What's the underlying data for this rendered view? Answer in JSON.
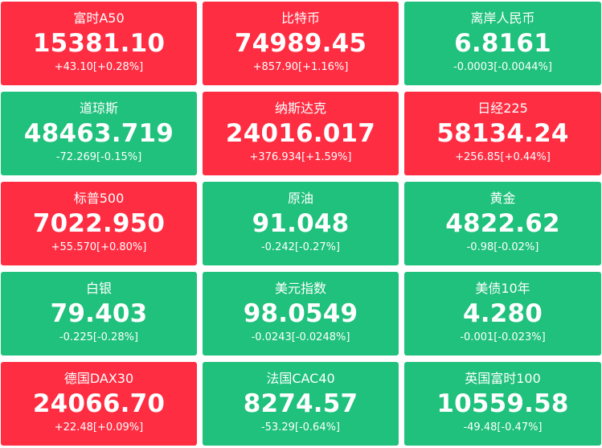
{
  "colors": {
    "up": "#fe2d42",
    "down": "#1fc17c",
    "text": "#ffffff"
  },
  "tiles": [
    {
      "name": "富时A50",
      "price": "15381.10",
      "change": "+43.10[+0.28%]",
      "trend": "up"
    },
    {
      "name": "比特币",
      "price": "74989.45",
      "change": "+857.90[+1.16%]",
      "trend": "up"
    },
    {
      "name": "离岸人民币",
      "price": "6.8161",
      "change": "-0.0003[-0.0044%]",
      "trend": "down"
    },
    {
      "name": "道琼斯",
      "price": "48463.719",
      "change": "-72.269[-0.15%]",
      "trend": "down"
    },
    {
      "name": "纳斯达克",
      "price": "24016.017",
      "change": "+376.934[+1.59%]",
      "trend": "up"
    },
    {
      "name": "日经225",
      "price": "58134.24",
      "change": "+256.85[+0.44%]",
      "trend": "up"
    },
    {
      "name": "标普500",
      "price": "7022.950",
      "change": "+55.570[+0.80%]",
      "trend": "up"
    },
    {
      "name": "原油",
      "price": "91.048",
      "change": "-0.242[-0.27%]",
      "trend": "down"
    },
    {
      "name": "黄金",
      "price": "4822.62",
      "change": "-0.98[-0.02%]",
      "trend": "down"
    },
    {
      "name": "白银",
      "price": "79.403",
      "change": "-0.225[-0.28%]",
      "trend": "down"
    },
    {
      "name": "美元指数",
      "price": "98.0549",
      "change": "-0.0243[-0.0248%]",
      "trend": "down"
    },
    {
      "name": "美债10年",
      "price": "4.280",
      "change": "-0.001[-0.023%]",
      "trend": "down"
    },
    {
      "name": "德国DAX30",
      "price": "24066.70",
      "change": "+22.48[+0.09%]",
      "trend": "up"
    },
    {
      "name": "法国CAC40",
      "price": "8274.57",
      "change": "-53.29[-0.64%]",
      "trend": "down"
    },
    {
      "name": "英国富时100",
      "price": "10559.58",
      "change": "-49.48[-0.47%]",
      "trend": "down"
    }
  ]
}
